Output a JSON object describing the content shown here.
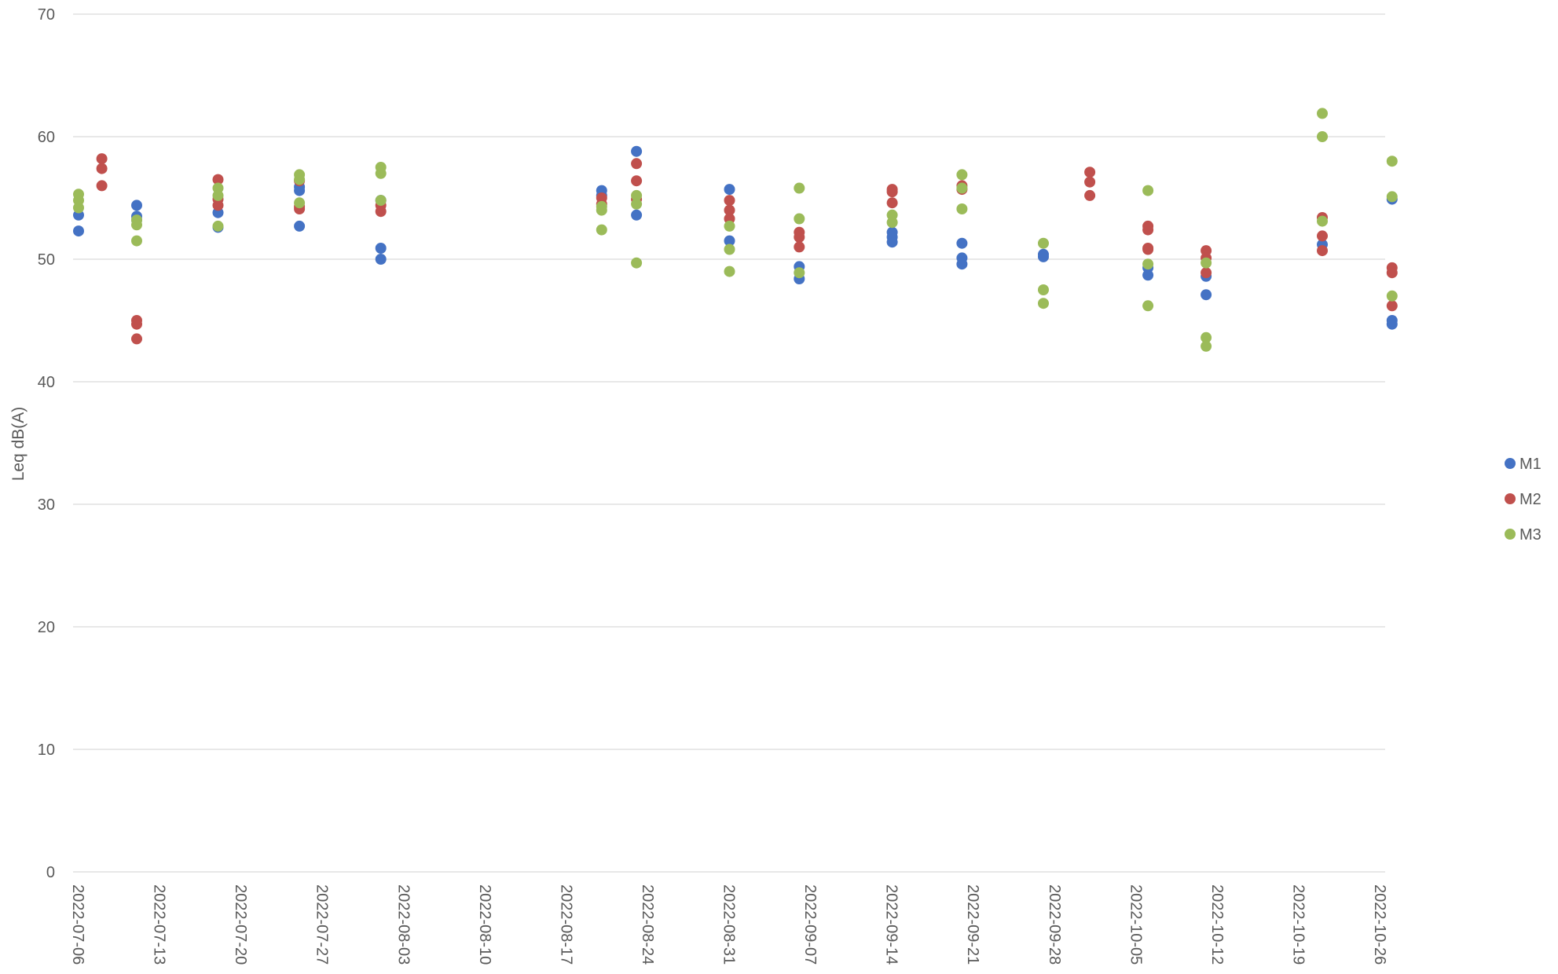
{
  "chart_data": {
    "type": "scatter",
    "title": "",
    "xlabel": "",
    "ylabel": "Leq dB(A)",
    "ylim": [
      0,
      70
    ],
    "yticks": [
      0,
      10,
      20,
      30,
      40,
      50,
      60,
      70
    ],
    "xlim": [
      "2022-07-06",
      "2022-10-26"
    ],
    "xticks": [
      "2022-07-06",
      "2022-07-13",
      "2022-07-20",
      "2022-07-27",
      "2022-08-03",
      "2022-08-10",
      "2022-08-17",
      "2022-08-24",
      "2022-08-31",
      "2022-09-07",
      "2022-09-14",
      "2022-09-21",
      "2022-09-28",
      "2022-10-05",
      "2022-10-12",
      "2022-10-19",
      "2022-10-26"
    ],
    "grid": true,
    "legend_position": "right",
    "series": [
      {
        "name": "M1",
        "color": "#4472C4",
        "points": [
          [
            "2022-07-06",
            53.6
          ],
          [
            "2022-07-06",
            52.3
          ],
          [
            "2022-07-11",
            54.4
          ],
          [
            "2022-07-11",
            53.5
          ],
          [
            "2022-07-11",
            53.2
          ],
          [
            "2022-07-18",
            53.8
          ],
          [
            "2022-07-18",
            52.6
          ],
          [
            "2022-07-25",
            55.9
          ],
          [
            "2022-07-25",
            55.6
          ],
          [
            "2022-07-25",
            52.7
          ],
          [
            "2022-08-01",
            54.8
          ],
          [
            "2022-08-01",
            50.9
          ],
          [
            "2022-08-01",
            50.0
          ],
          [
            "2022-08-20",
            55.6
          ],
          [
            "2022-08-20",
            55.2
          ],
          [
            "2022-08-23",
            58.8
          ],
          [
            "2022-08-23",
            53.6
          ],
          [
            "2022-08-31",
            55.7
          ],
          [
            "2022-08-31",
            51.5
          ],
          [
            "2022-09-06",
            49.4
          ],
          [
            "2022-09-06",
            48.4
          ],
          [
            "2022-09-14",
            52.2
          ],
          [
            "2022-09-14",
            51.8
          ],
          [
            "2022-09-14",
            51.4
          ],
          [
            "2022-09-20",
            51.3
          ],
          [
            "2022-09-20",
            50.1
          ],
          [
            "2022-09-20",
            49.6
          ],
          [
            "2022-09-27",
            50.4
          ],
          [
            "2022-09-27",
            50.2
          ],
          [
            "2022-10-06",
            49.3
          ],
          [
            "2022-10-06",
            48.7
          ],
          [
            "2022-10-11",
            48.6
          ],
          [
            "2022-10-11",
            47.1
          ],
          [
            "2022-10-21",
            51.2
          ],
          [
            "2022-10-27",
            54.9
          ],
          [
            "2022-10-27",
            45.0
          ],
          [
            "2022-10-27",
            44.7
          ]
        ]
      },
      {
        "name": "M2",
        "color": "#C0504D",
        "points": [
          [
            "2022-07-08",
            58.2
          ],
          [
            "2022-07-08",
            57.4
          ],
          [
            "2022-07-08",
            56.0
          ],
          [
            "2022-07-11",
            45.0
          ],
          [
            "2022-07-11",
            44.7
          ],
          [
            "2022-07-11",
            43.5
          ],
          [
            "2022-07-18",
            56.5
          ],
          [
            "2022-07-18",
            54.9
          ],
          [
            "2022-07-18",
            54.4
          ],
          [
            "2022-07-25",
            56.4
          ],
          [
            "2022-07-25",
            54.3
          ],
          [
            "2022-07-25",
            54.1
          ],
          [
            "2022-08-01",
            54.4
          ],
          [
            "2022-08-01",
            53.9
          ],
          [
            "2022-08-20",
            55.0
          ],
          [
            "2022-08-20",
            54.5
          ],
          [
            "2022-08-23",
            57.8
          ],
          [
            "2022-08-23",
            56.4
          ],
          [
            "2022-08-23",
            54.9
          ],
          [
            "2022-08-31",
            54.8
          ],
          [
            "2022-08-31",
            54.0
          ],
          [
            "2022-08-31",
            53.3
          ],
          [
            "2022-09-06",
            52.2
          ],
          [
            "2022-09-06",
            51.8
          ],
          [
            "2022-09-06",
            51.0
          ],
          [
            "2022-09-14",
            55.7
          ],
          [
            "2022-09-14",
            55.5
          ],
          [
            "2022-09-14",
            54.6
          ],
          [
            "2022-09-20",
            56.0
          ],
          [
            "2022-09-20",
            55.7
          ],
          [
            "2022-10-01",
            57.1
          ],
          [
            "2022-10-01",
            56.3
          ],
          [
            "2022-10-01",
            55.2
          ],
          [
            "2022-10-06",
            52.7
          ],
          [
            "2022-10-06",
            52.4
          ],
          [
            "2022-10-06",
            50.9
          ],
          [
            "2022-10-06",
            50.8
          ],
          [
            "2022-10-11",
            50.7
          ],
          [
            "2022-10-11",
            50.1
          ],
          [
            "2022-10-11",
            48.9
          ],
          [
            "2022-10-21",
            53.4
          ],
          [
            "2022-10-21",
            51.9
          ],
          [
            "2022-10-21",
            50.7
          ],
          [
            "2022-10-27",
            49.3
          ],
          [
            "2022-10-27",
            48.9
          ],
          [
            "2022-10-27",
            46.2
          ]
        ]
      },
      {
        "name": "M3",
        "color": "#9BBB59",
        "points": [
          [
            "2022-07-06",
            55.3
          ],
          [
            "2022-07-06",
            54.8
          ],
          [
            "2022-07-06",
            54.2
          ],
          [
            "2022-07-11",
            53.2
          ],
          [
            "2022-07-11",
            52.8
          ],
          [
            "2022-07-11",
            51.5
          ],
          [
            "2022-07-18",
            55.8
          ],
          [
            "2022-07-18",
            55.2
          ],
          [
            "2022-07-18",
            52.7
          ],
          [
            "2022-07-25",
            56.9
          ],
          [
            "2022-07-25",
            56.5
          ],
          [
            "2022-07-25",
            54.6
          ],
          [
            "2022-08-01",
            57.5
          ],
          [
            "2022-08-01",
            57.0
          ],
          [
            "2022-08-01",
            54.8
          ],
          [
            "2022-08-20",
            54.3
          ],
          [
            "2022-08-20",
            54.0
          ],
          [
            "2022-08-20",
            52.4
          ],
          [
            "2022-08-23",
            55.2
          ],
          [
            "2022-08-23",
            54.5
          ],
          [
            "2022-08-23",
            49.7
          ],
          [
            "2022-08-31",
            52.7
          ],
          [
            "2022-08-31",
            50.8
          ],
          [
            "2022-08-31",
            49.0
          ],
          [
            "2022-09-06",
            55.8
          ],
          [
            "2022-09-06",
            53.3
          ],
          [
            "2022-09-06",
            48.9
          ],
          [
            "2022-09-14",
            53.6
          ],
          [
            "2022-09-14",
            53.0
          ],
          [
            "2022-09-20",
            56.9
          ],
          [
            "2022-09-20",
            55.8
          ],
          [
            "2022-09-20",
            54.1
          ],
          [
            "2022-09-27",
            51.3
          ],
          [
            "2022-09-27",
            47.5
          ],
          [
            "2022-09-27",
            46.4
          ],
          [
            "2022-10-06",
            55.6
          ],
          [
            "2022-10-06",
            49.6
          ],
          [
            "2022-10-06",
            46.2
          ],
          [
            "2022-10-11",
            49.7
          ],
          [
            "2022-10-11",
            43.6
          ],
          [
            "2022-10-11",
            42.9
          ],
          [
            "2022-10-21",
            61.9
          ],
          [
            "2022-10-21",
            60.0
          ],
          [
            "2022-10-21",
            53.1
          ],
          [
            "2022-10-27",
            58.0
          ],
          [
            "2022-10-27",
            55.1
          ],
          [
            "2022-10-27",
            47.0
          ]
        ]
      }
    ]
  }
}
